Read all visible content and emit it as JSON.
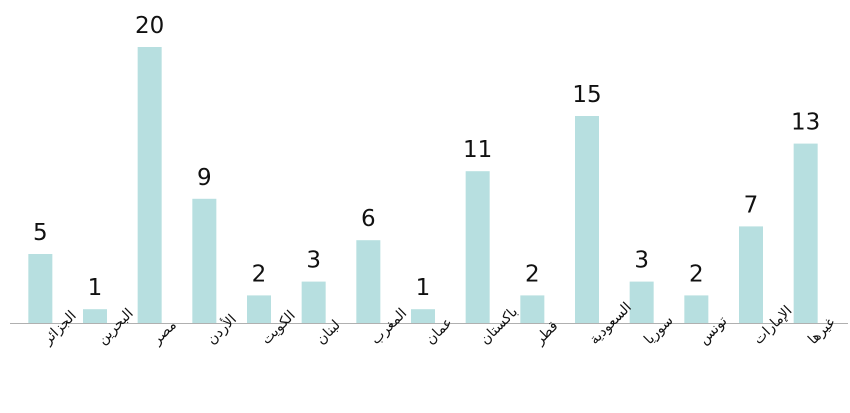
{
  "chart_data": {
    "type": "bar",
    "categories": [
      "الجزائر",
      "البحرين",
      "مصر",
      "الأردن",
      "الكويت",
      "لبنان",
      "المغرب",
      "عمان",
      "باكستان",
      "قطر",
      "السعودية",
      "سوريا",
      "تونس",
      "الإمارات",
      "غيرها"
    ],
    "values": [
      5,
      1,
      20,
      9,
      2,
      3,
      6,
      1,
      11,
      2,
      15,
      3,
      2,
      7,
      13
    ],
    "title": "",
    "xlabel": "",
    "ylabel": "",
    "ylim": [
      0,
      20
    ],
    "grid": false,
    "legend": "none",
    "colors": {
      "bar": "#b7dfe0",
      "text": "#111111",
      "axis": "#b0b0b0"
    }
  }
}
